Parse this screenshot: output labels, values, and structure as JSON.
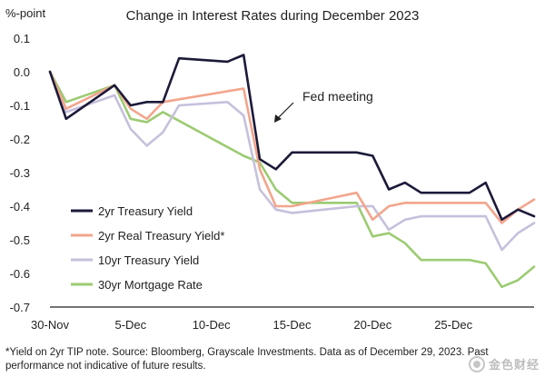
{
  "chart_data": {
    "type": "line",
    "title": "Change in Interest Rates during December 2023",
    "ylabel": "%-point",
    "xlabel": "",
    "ylim": [
      -0.7,
      0.1
    ],
    "yticks": [
      0.1,
      0.0,
      -0.1,
      -0.2,
      -0.3,
      -0.4,
      -0.5,
      -0.6,
      -0.7
    ],
    "ytick_labels": [
      "0.1",
      "0.0",
      "-0.1",
      "-0.2",
      "-0.3",
      "-0.4",
      "-0.5",
      "-0.6",
      "-0.7"
    ],
    "xlim": [
      0,
      30
    ],
    "xticks": [
      0,
      5,
      10,
      15,
      20,
      25
    ],
    "xtick_labels": [
      "30-Nov",
      "5-Dec",
      "10-Dec",
      "15-Dec",
      "20-Dec",
      "25-Dec"
    ],
    "grid": false,
    "legend": "left, mid-lower",
    "series": [
      {
        "name": "2yr Treasury Yield",
        "color": "#1b1a3a",
        "x": [
          0,
          1,
          4,
          5,
          6,
          7,
          8,
          11,
          12,
          13,
          14,
          15,
          19,
          20,
          21,
          22,
          23,
          26,
          27,
          28,
          29,
          30
        ],
        "y": [
          0.0,
          -0.14,
          -0.04,
          -0.1,
          -0.09,
          -0.09,
          0.04,
          0.03,
          0.05,
          -0.26,
          -0.29,
          -0.24,
          -0.24,
          -0.25,
          -0.35,
          -0.33,
          -0.36,
          -0.36,
          -0.33,
          -0.44,
          -0.41,
          -0.43
        ]
      },
      {
        "name": "2yr Real Treasury Yield*",
        "color": "#f2a58d",
        "x": [
          0,
          1,
          4,
          5,
          6,
          7,
          12,
          13,
          14,
          15,
          19,
          20,
          21,
          22,
          23,
          26,
          27,
          28,
          29,
          30
        ],
        "y": [
          0.0,
          -0.11,
          -0.04,
          -0.11,
          -0.14,
          -0.09,
          -0.05,
          -0.29,
          -0.4,
          -0.4,
          -0.36,
          -0.44,
          -0.4,
          -0.39,
          -0.39,
          -0.39,
          -0.39,
          -0.45,
          -0.41,
          -0.38
        ]
      },
      {
        "name": "10yr Treasury Yield",
        "color": "#c6c0dc",
        "x": [
          0,
          1,
          4,
          5,
          6,
          7,
          8,
          11,
          12,
          13,
          14,
          15,
          19,
          20,
          21,
          22,
          23,
          26,
          27,
          28,
          29,
          30
        ],
        "y": [
          0.0,
          -0.12,
          -0.07,
          -0.17,
          -0.22,
          -0.18,
          -0.1,
          -0.09,
          -0.13,
          -0.35,
          -0.41,
          -0.42,
          -0.4,
          -0.4,
          -0.47,
          -0.44,
          -0.43,
          -0.43,
          -0.43,
          -0.53,
          -0.48,
          -0.45
        ]
      },
      {
        "name": "30yr Mortgage Rate",
        "color": "#9ccb73",
        "x": [
          0,
          1,
          4,
          5,
          6,
          7,
          12,
          13,
          14,
          15,
          19,
          20,
          21,
          22,
          23,
          26,
          27,
          28,
          29,
          30
        ],
        "y": [
          0.0,
          -0.09,
          -0.04,
          -0.14,
          -0.15,
          -0.12,
          -0.25,
          -0.27,
          -0.35,
          -0.39,
          -0.39,
          -0.49,
          -0.48,
          -0.51,
          -0.56,
          -0.56,
          -0.57,
          -0.64,
          -0.62,
          -0.58
        ]
      }
    ],
    "annotations": [
      {
        "text": "Fed meeting",
        "arrow": true
      }
    ]
  },
  "footnote": {
    "line1": "*Yield on 2yr TIP note. Source: Bloomberg, Grayscale Investments. Data as of December 29, 2023. Past",
    "line2": "performance not indicative of future results."
  },
  "watermark": {
    "text": "金色财经"
  },
  "axis_color": "#222222"
}
